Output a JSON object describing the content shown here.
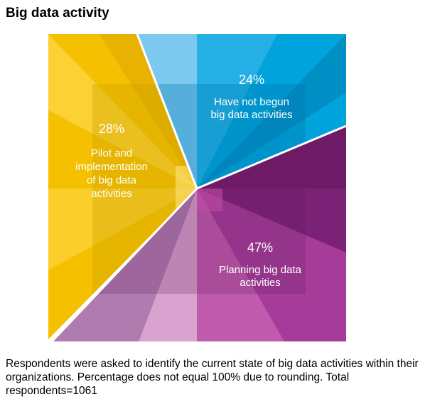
{
  "title": "Big data activity",
  "footnote": "Respondents were asked to identify the current state of big data activities within their organizations. Percentage does not equal 100% due to rounding. Total respondents=1061",
  "colors": {
    "pilot": "#f5c000",
    "not_begun": "#00a3dc",
    "planning": "#8b2580"
  },
  "chart_data": {
    "type": "pie",
    "title": "Big data activity",
    "slices": [
      {
        "percent_label": "28%",
        "label_lines": [
          "Pilot and",
          "implementation",
          "of big data",
          "activities"
        ],
        "value": 28
      },
      {
        "percent_label": "24%",
        "label_lines": [
          "Have not begun",
          "big data activities"
        ],
        "value": 24
      },
      {
        "percent_label": "47%",
        "label_lines": [
          "Planning big data",
          "activities"
        ],
        "value": 47
      }
    ]
  }
}
